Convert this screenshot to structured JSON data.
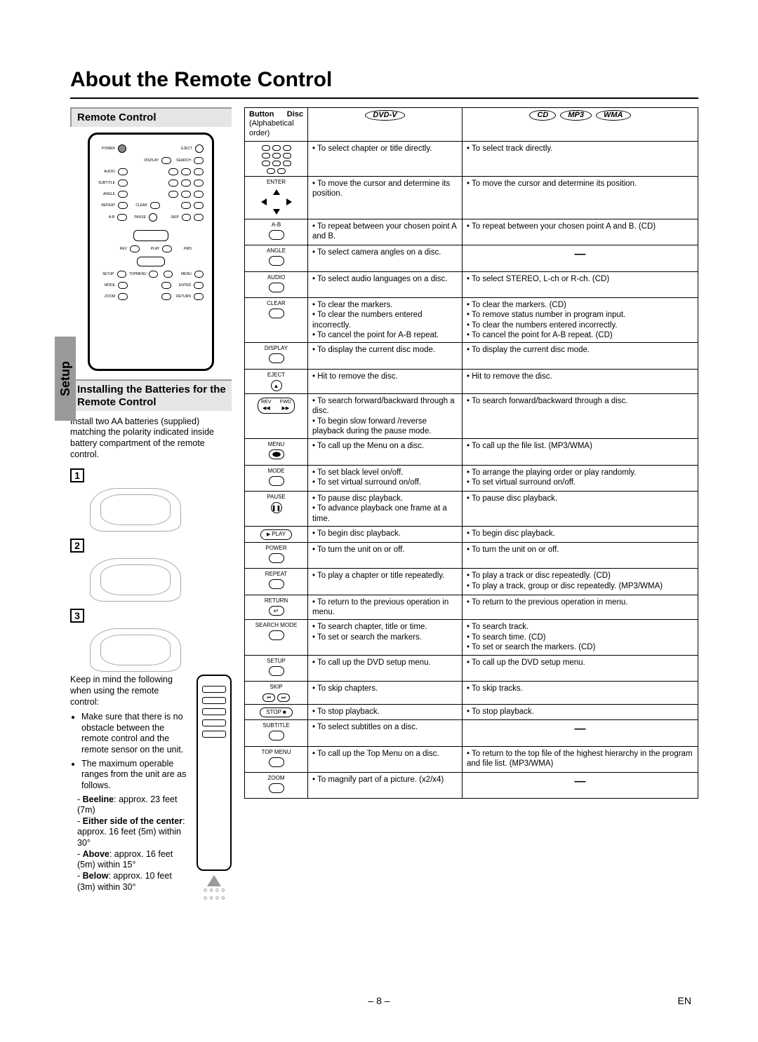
{
  "page": {
    "number": "8",
    "lang": "EN"
  },
  "title": "About the Remote Control",
  "sidebar_tab": "Setup",
  "sections": {
    "remote": "Remote Control",
    "batteries": "Installing the Batteries for the Remote Control"
  },
  "battery_text": "Install two AA batteries (supplied) matching the polarity indicated inside battery compartment of the remote control.",
  "steps": [
    "1",
    "2",
    "3"
  ],
  "notes_intro": "Keep in mind the following when using the remote control:",
  "notes": [
    "Make sure that there is no obstacle between the remote control and the remote sensor on the unit.",
    "The maximum operable ranges from the unit are as follows."
  ],
  "ranges": [
    {
      "label": "Beeline",
      "val": "approx. 23 feet (7m)"
    },
    {
      "label": "Either side of the center",
      "val": "approx. 16 feet (5m) within 30°"
    },
    {
      "label": "Above",
      "val": "approx. 16 feet (5m) within 15°"
    },
    {
      "label": "Below",
      "val": "approx. 10 feet (3m) within 30°"
    }
  ],
  "table_header": {
    "btn": "Button",
    "btn_sub": "(Alphabetical order)",
    "disc": "Disc",
    "dvd": "DVD-V",
    "cd": "CD",
    "mp3": "MP3",
    "wma": "WMA"
  },
  "rows": [
    {
      "btn": "numeric",
      "dvd": [
        "To select chapter or title directly."
      ],
      "cd": [
        "To select track directly."
      ]
    },
    {
      "btn": "arrows",
      "lbl": "ENTER",
      "dvd": [
        "To move the cursor and determine its position."
      ],
      "cd": [
        "To move the cursor and determine its position."
      ]
    },
    {
      "btn": "oval",
      "lbl": "A-B",
      "dvd": [
        "To repeat between your chosen point A and B."
      ],
      "cd": [
        "To repeat between your chosen point A and B. (CD)"
      ]
    },
    {
      "btn": "oval",
      "lbl": "ANGLE",
      "dvd": [
        "To select camera angles on a disc."
      ],
      "cd": "dash"
    },
    {
      "btn": "oval",
      "lbl": "AUDIO",
      "dvd": [
        "To select audio languages on a disc."
      ],
      "cd": [
        "To select STEREO, L-ch or R-ch. (CD)"
      ]
    },
    {
      "btn": "oval",
      "lbl": "CLEAR",
      "dvd": [
        "To clear the markers.",
        "To clear the numbers entered incorrectly.",
        "To cancel the point for A-B repeat."
      ],
      "cd": [
        "To clear the markers. (CD)",
        "To remove status number in program input.",
        "To clear the numbers entered incorrectly.",
        "To cancel the point for A-B repeat. (CD)"
      ]
    },
    {
      "btn": "oval",
      "lbl": "DISPLAY",
      "dvd": [
        "To display the current disc mode."
      ],
      "cd": [
        "To display the current disc mode."
      ]
    },
    {
      "btn": "circle",
      "lbl": "EJECT",
      "glyph": "▲",
      "dvd": [
        "Hit to remove the disc."
      ],
      "cd": [
        "Hit to remove the disc."
      ]
    },
    {
      "btn": "fwdrev",
      "lbl": "REV  FWD",
      "dvd": [
        "To search forward/backward through a disc.",
        "To begin slow forward /reverse playback during the pause mode."
      ],
      "cd": [
        "To search forward/backward through a disc."
      ]
    },
    {
      "btn": "oval-fill",
      "lbl": "MENU",
      "dvd": [
        "To call up the Menu on a disc."
      ],
      "cd": [
        "To call up the file list. (MP3/WMA)"
      ]
    },
    {
      "btn": "oval",
      "lbl": "MODE",
      "dvd": [
        "To set black level on/off.",
        "To set virtual surround on/off."
      ],
      "cd": [
        "To arrange the playing order or play randomly.",
        "To set virtual surround on/off."
      ]
    },
    {
      "btn": "circle",
      "lbl": "PAUSE",
      "glyph": "❚❚",
      "dvd": [
        "To pause disc playback.",
        "To advance playback one frame at a time."
      ],
      "cd": [
        "To pause disc playback."
      ]
    },
    {
      "btn": "play",
      "lbl": "PLAY",
      "dvd": [
        "To begin disc playback."
      ],
      "cd": [
        "To begin disc playback."
      ]
    },
    {
      "btn": "oval",
      "lbl": "POWER",
      "dvd": [
        "To turn the unit on or off."
      ],
      "cd": [
        "To turn the unit on or off."
      ]
    },
    {
      "btn": "oval",
      "lbl": "REPEAT",
      "dvd": [
        "To play a chapter or title repeatedly."
      ],
      "cd": [
        "To play a track or disc repeatedly. (CD)",
        "To play a track, group or disc repeatedly. (MP3/WMA)"
      ]
    },
    {
      "btn": "oval-ret",
      "lbl": "RETURN",
      "dvd": [
        "To return to the previous operation in menu."
      ],
      "cd": [
        "To return to the previous operation in menu."
      ]
    },
    {
      "btn": "oval",
      "lbl": "SEARCH MODE",
      "dvd": [
        "To search chapter, title or time.",
        "To set or search the markers."
      ],
      "cd": [
        "To search track.",
        "To search time. (CD)",
        "To set or search the markers. (CD)"
      ]
    },
    {
      "btn": "oval",
      "lbl": "SETUP",
      "dvd": [
        "To call up the DVD setup menu."
      ],
      "cd": [
        "To call up the DVD setup menu."
      ]
    },
    {
      "btn": "skip",
      "lbl": "SKIP",
      "dvd": [
        "To skip chapters."
      ],
      "cd": [
        "To skip tracks."
      ]
    },
    {
      "btn": "stop",
      "lbl": "STOP",
      "dvd": [
        "To stop playback."
      ],
      "cd": [
        "To stop playback."
      ]
    },
    {
      "btn": "oval",
      "lbl": "SUBTITLE",
      "dvd": [
        "To select subtitles on a disc."
      ],
      "cd": "dash"
    },
    {
      "btn": "oval",
      "lbl": "TOP MENU",
      "dvd": [
        "To call up the Top Menu on a disc."
      ],
      "cd": [
        "To return to the top file of the highest hierarchy in the program and file list. (MP3/WMA)"
      ]
    },
    {
      "btn": "oval",
      "lbl": "ZOOM",
      "dvd": [
        "To magnify part of a picture. (x2/x4)"
      ],
      "cd": "dash"
    }
  ]
}
